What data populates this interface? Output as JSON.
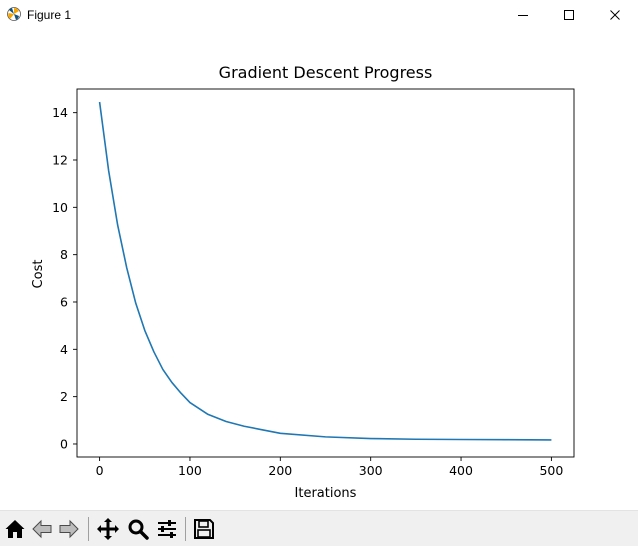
{
  "window": {
    "title": "Figure 1",
    "icons": [
      "matplotlib-logo-icon",
      "minimize-icon",
      "maximize-icon",
      "close-icon"
    ]
  },
  "toolbar": {
    "tools": [
      "home-icon",
      "back-arrow-icon",
      "forward-arrow-icon",
      "pan-icon",
      "zoom-icon",
      "configure-subplots-icon",
      "save-icon"
    ]
  },
  "chart_data": {
    "type": "line",
    "title": "Gradient Descent Progress",
    "xlabel": "Iterations",
    "ylabel": "Cost",
    "xlim": [
      -25,
      525
    ],
    "ylim": [
      -0.55,
      15.0
    ],
    "xticks": [
      0,
      100,
      200,
      300,
      400,
      500
    ],
    "yticks": [
      0,
      2,
      4,
      6,
      8,
      10,
      12,
      14
    ],
    "grid": false,
    "series": [
      {
        "color": "#1f77b4",
        "x": [
          0,
          10,
          20,
          30,
          40,
          50,
          60,
          70,
          80,
          90,
          100,
          120,
          140,
          160,
          180,
          200,
          250,
          300,
          350,
          400,
          450,
          500
        ],
        "values": [
          14.45,
          11.55,
          9.25,
          7.45,
          5.95,
          4.8,
          3.9,
          3.15,
          2.6,
          2.15,
          1.75,
          1.25,
          0.95,
          0.75,
          0.6,
          0.45,
          0.3,
          0.23,
          0.2,
          0.19,
          0.18,
          0.17
        ]
      }
    ]
  }
}
